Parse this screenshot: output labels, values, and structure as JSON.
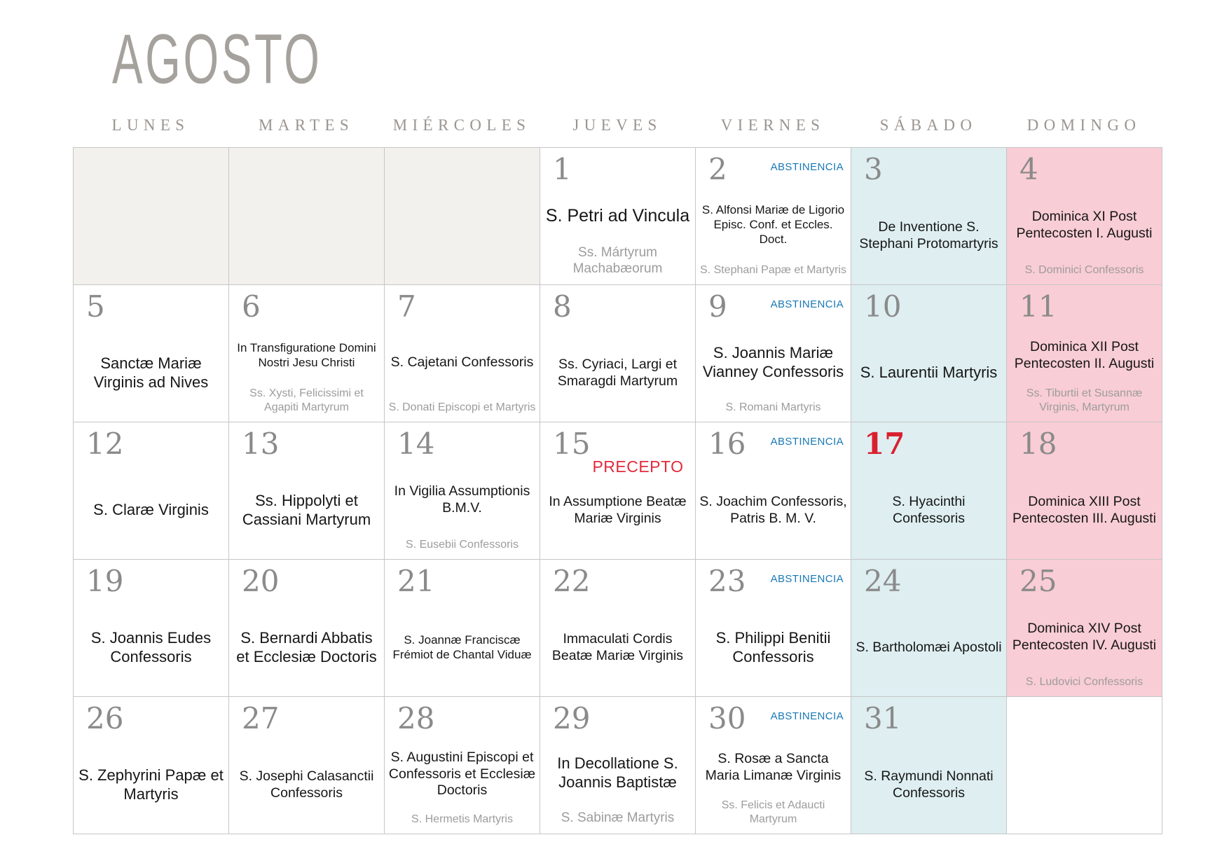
{
  "title": "AGOSTO",
  "weekday_headers": [
    "LUNES",
    "MARTES",
    "MIÉRCOLES",
    "JUEVES",
    "VIERNES",
    "SÁBADO",
    "DOMINGO"
  ],
  "weekday_keys": [
    "lunes",
    "martes",
    "miercoles",
    "jueves",
    "viernes",
    "sabado",
    "domingo"
  ],
  "labels": {
    "abstinencia": "ABSTINENCIA",
    "precepto": "PRECEPTO"
  },
  "colors": {
    "saturday_bg": "#deeef1",
    "sunday_bg": "#f9cdd5",
    "empty_bg": "#f2f1ee",
    "abstinencia_blue": "#1878b4",
    "precepto_red": "#e12b3b",
    "day_number_red": "#d9202f",
    "day_number_gray": "#8a8a8a",
    "feast_text": "#161616",
    "secondary_text": "#9c9c9c",
    "header_text": "#9a9591",
    "title_text": "#a5a19c",
    "grid_line": "#c6c6c6"
  },
  "cells": [
    {
      "empty": true
    },
    {
      "empty": true
    },
    {
      "empty": true
    },
    {
      "day": "1",
      "main": "S. Petri ad Vincula",
      "secondary": "Ss. Mártyrum Machabæorum",
      "size": "xl",
      "sec_size": "lg"
    },
    {
      "day": "2",
      "abstinencia": true,
      "main": "S. Alfonsi Mariæ de Ligorio Episc. Conf. et Eccles. Doct.",
      "secondary": "S. Stephani Papæ et Martyris",
      "size": "sm"
    },
    {
      "day": "3",
      "main": "De Inventione S. Stephani Protomartyris",
      "size": "md"
    },
    {
      "day": "4",
      "main": "Dominica XI Post Pentecosten I. Augusti",
      "secondary": "S. Dominici Confessoris",
      "size": "md"
    },
    {
      "day": "5",
      "main": "Sanctæ Mariæ Virginis ad Nives",
      "size": "lg"
    },
    {
      "day": "6",
      "main": "In Transfiguratione Domini Nostri Jesu Christi",
      "secondary": "Ss. Xysti, Felicissimi et Agapiti Martyrum",
      "size": "sm"
    },
    {
      "day": "7",
      "main": "S. Cajetani Confessoris",
      "secondary": "S. Donati Episcopi et Martyris",
      "size": "md"
    },
    {
      "day": "8",
      "main": "Ss. Cyriaci, Largi et Smaragdi Martyrum",
      "size": "md"
    },
    {
      "day": "9",
      "abstinencia": true,
      "main": "S. Joannis Mariæ Vianney Confessoris",
      "secondary": "S. Romani Martyris",
      "size": "lg"
    },
    {
      "day": "10",
      "main": "S. Laurentii Martyris",
      "size": "lg"
    },
    {
      "day": "11",
      "main": "Dominica XII Post Pentecosten II. Augusti",
      "secondary": "Ss. Tiburtii et Susannæ Virginis, Martyrum",
      "size": "md"
    },
    {
      "day": "12",
      "main": "S. Claræ Virginis",
      "size": "lg"
    },
    {
      "day": "13",
      "main": "Ss. Hippolyti et Cassiani Martyrum",
      "size": "lg"
    },
    {
      "day": "14",
      "main": "In Vigilia Assumptionis B.M.V.",
      "secondary": "S. Eusebii Confessoris",
      "size": "md"
    },
    {
      "day": "15",
      "precepto": true,
      "main": "In Assumptione Beatæ Mariæ Virginis",
      "size": "md"
    },
    {
      "day": "16",
      "abstinencia": true,
      "main": "S. Joachim Confessoris, Patris B. M. V.",
      "size": "md"
    },
    {
      "day": "17",
      "red": true,
      "main": "S. Hyacinthi Confessoris",
      "size": "md"
    },
    {
      "day": "18",
      "main": "Dominica XIII Post Pentecosten III. Augusti",
      "size": "md"
    },
    {
      "day": "19",
      "main": "S. Joannis Eudes Confessoris",
      "size": "lg"
    },
    {
      "day": "20",
      "main": "S. Bernardi Abbatis et Ecclesiæ Doctoris",
      "size": "lg"
    },
    {
      "day": "21",
      "main": "S. Joannæ Franciscæ Frémiot de Chantal Viduæ",
      "size": "sm"
    },
    {
      "day": "22",
      "main": "Immaculati Cordis Beatæ Mariæ Virginis",
      "size": "md"
    },
    {
      "day": "23",
      "abstinencia": true,
      "main": "S. Philippi Benitii Confessoris",
      "size": "lg"
    },
    {
      "day": "24",
      "main": "S. Bartholomæi Apostoli",
      "size": "md"
    },
    {
      "day": "25",
      "main": "Dominica XIV Post Pentecosten IV. Augusti",
      "secondary": "S. Ludovici Confessoris",
      "size": "md"
    },
    {
      "day": "26",
      "main": "S. Zephyrini Papæ et Martyris",
      "size": "lg"
    },
    {
      "day": "27",
      "main": "S. Josephi Calasanctii Confessoris",
      "size": "md"
    },
    {
      "day": "28",
      "main": "S. Augustini Episcopi et Confessoris et Ecclesiæ Doctoris",
      "secondary": "S. Hermetis Martyris",
      "size": "md"
    },
    {
      "day": "29",
      "main": "In Decollatione S. Joannis Baptistæ",
      "secondary": "S. Sabinæ Martyris",
      "size": "lg",
      "sec_size": "lg"
    },
    {
      "day": "30",
      "abstinencia": true,
      "main": "S. Rosæ a Sancta Maria Limanæ Virginis",
      "secondary": "Ss. Felicis et Adaucti Martyrum",
      "size": "md"
    },
    {
      "day": "31",
      "main": "S. Raymundi Nonnati Confessoris",
      "size": "md"
    },
    {
      "empty": true,
      "white": true
    }
  ]
}
